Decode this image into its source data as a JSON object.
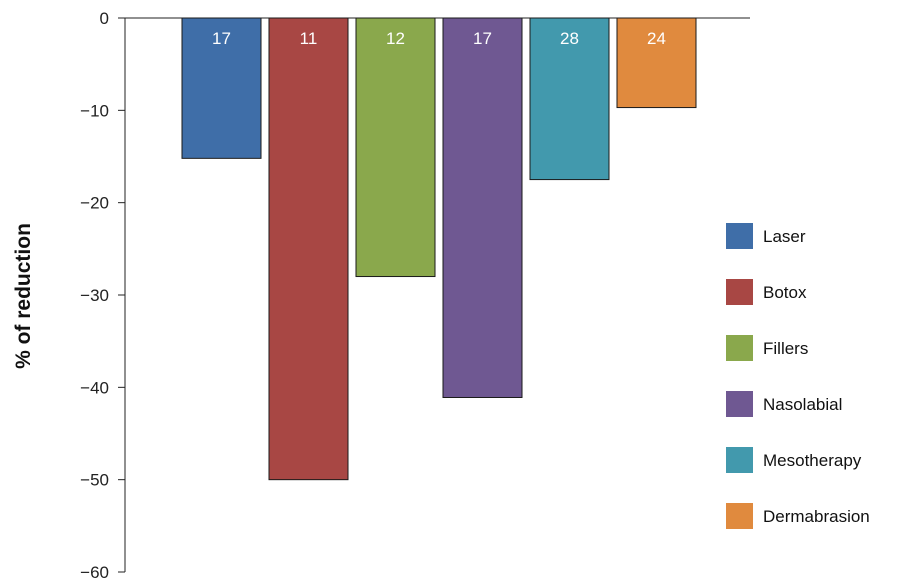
{
  "chart_data": {
    "type": "bar",
    "title": "",
    "xlabel": "",
    "ylabel": "% of reduction",
    "ylim": [
      -60,
      0
    ],
    "yticks": [
      0,
      -10,
      -20,
      -30,
      -40,
      -50,
      -60
    ],
    "ytick_labels": [
      "0",
      "−10",
      "−20",
      "−30",
      "−40",
      "−50",
      "−60"
    ],
    "grid": false,
    "legend_position": "right",
    "categories": [
      "Laser",
      "Botox",
      "Fillers",
      "Nasolabial",
      "Mesotherapy",
      "Dermabrasion"
    ],
    "values": [
      -15.2,
      -50,
      -28,
      -41.1,
      -17.5,
      -9.7
    ],
    "bar_labels": [
      "17",
      "11",
      "12",
      "17",
      "28",
      "24"
    ],
    "colors": [
      "#3f6ea8",
      "#a84744",
      "#8aa84c",
      "#6f5892",
      "#4299ad",
      "#e08a3e"
    ]
  }
}
